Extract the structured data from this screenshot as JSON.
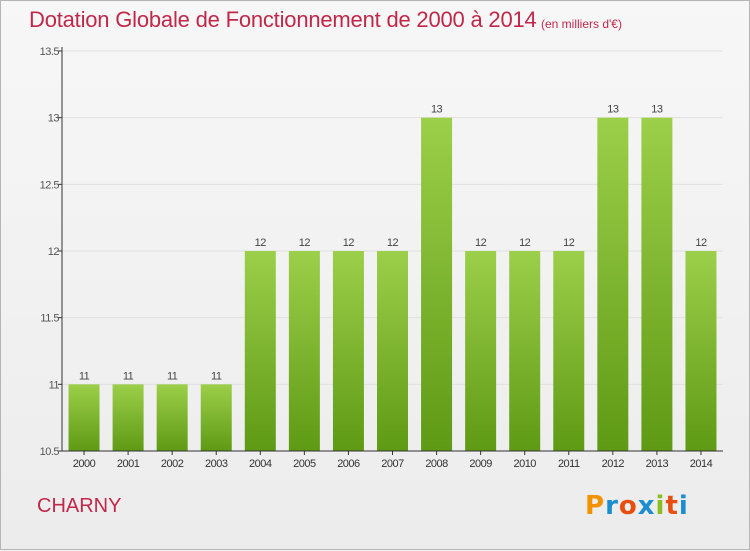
{
  "title": "Dotation Globale de Fonctionnement de 2000 à 2014",
  "unit_note": "(en milliers d'€)",
  "place": "CHARNY",
  "logo": {
    "letters": [
      "P",
      "r",
      "o",
      "x",
      "i",
      "t",
      "i"
    ],
    "colors": [
      "#f39200",
      "#1b8ecf",
      "#e84e0f",
      "#1b8ecf",
      "#8cbd20",
      "#e84e0f",
      "#1b8ecf"
    ]
  },
  "colors": {
    "bar_top": "#9ccf4a",
    "bar_bottom": "#5f9a14",
    "title": "#c0284a",
    "axis": "#333333",
    "grid": "#e0e0e0"
  },
  "chart_data": {
    "type": "bar",
    "title": "Dotation Globale de Fonctionnement de 2000 à 2014",
    "categories": [
      "2000",
      "2001",
      "2002",
      "2003",
      "2004",
      "2005",
      "2006",
      "2007",
      "2008",
      "2009",
      "2010",
      "2011",
      "2012",
      "2013",
      "2014"
    ],
    "values": [
      11,
      11,
      11,
      11,
      12,
      12,
      12,
      12,
      13,
      12,
      12,
      12,
      13,
      13,
      12
    ],
    "labels": [
      "11",
      "11",
      "11",
      "11",
      "12",
      "12",
      "12",
      "12",
      "13",
      "12",
      "12",
      "12",
      "13",
      "13",
      "12"
    ],
    "ylim": [
      10.5,
      13.5
    ],
    "yticks": [
      "10.5",
      "11",
      "11.5",
      "12",
      "12.5",
      "13",
      "13.5"
    ],
    "grid": true,
    "xlabel": "",
    "ylabel": ""
  }
}
